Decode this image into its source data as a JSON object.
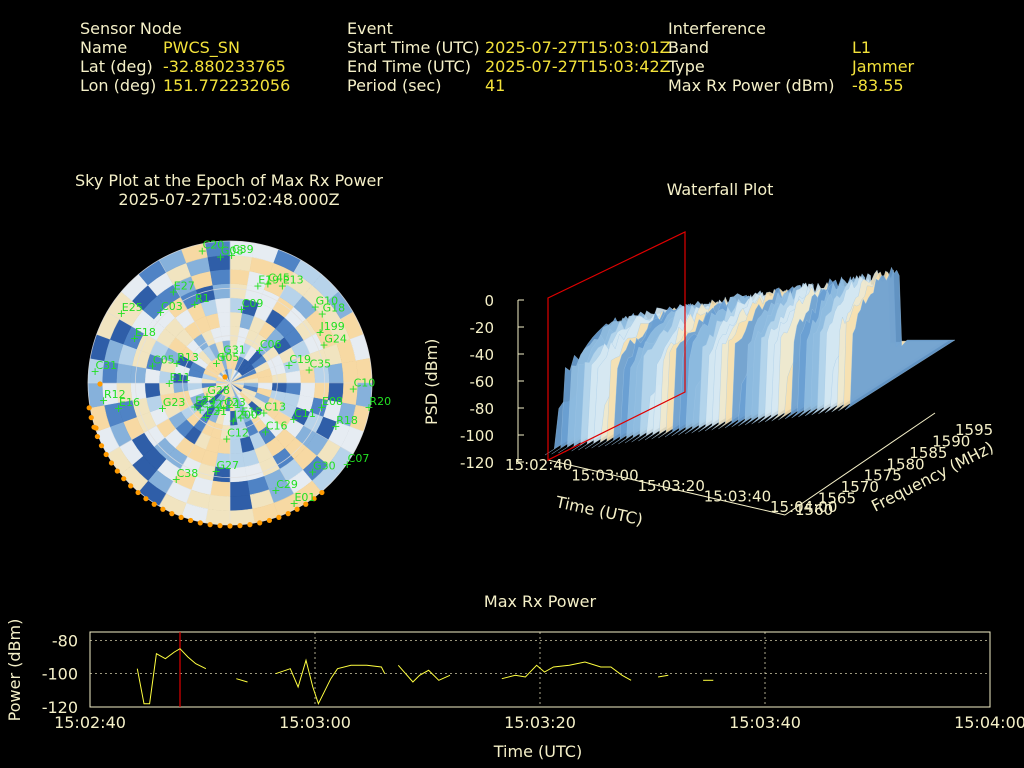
{
  "header": {
    "sensor": {
      "heading": "Sensor Node",
      "name_label": "Name",
      "name_value": "PWCS_SN",
      "lat_label": "Lat (deg)",
      "lat_value": "-32.880233765",
      "lon_label": "Lon (deg)",
      "lon_value": "151.772232056"
    },
    "event": {
      "heading": "Event",
      "start_label": "Start Time (UTC)",
      "start_value": "2025-07-27T15:03:01Z",
      "end_label": "End Time (UTC)",
      "end_value": "2025-07-27T15:03:42Z",
      "period_label": "Period (sec)",
      "period_value": "41"
    },
    "interference": {
      "heading": "Interference",
      "band_label": "Band",
      "band_value": "L1",
      "type_label": "Type",
      "type_value": "Jammer",
      "power_label": "Max Rx Power (dBm)",
      "power_value": "-83.55"
    }
  },
  "colors": {
    "label": "#f5f0c8",
    "value": "#f3e23a",
    "sat_label": "#22e022",
    "marker": "#ff9a00",
    "line": "#ffff40",
    "event": "#e00000"
  },
  "chart_data": [
    {
      "type": "scatter",
      "title": "Sky Plot at the Epoch of Max Rx Power",
      "subtitle": "2025-07-27T15:02:48.000Z",
      "satellites": [
        "C39",
        "G30",
        "C31",
        "G18",
        "G27",
        "E27",
        "E08",
        "G28",
        "C45",
        "C29",
        "E18",
        "C19",
        "C38",
        "C20",
        "C07",
        "R12",
        "C06",
        "J200",
        "C03",
        "C10",
        "C32",
        "C09",
        "C16",
        "C05",
        "J199",
        "C23",
        "R1",
        "R18",
        "G23",
        "E13",
        "E15",
        "E25",
        "C35",
        "E21",
        "G08",
        "C13",
        "E11",
        "G10",
        "C12",
        "G05",
        "R20",
        "E23",
        "E19",
        "E01",
        "R13",
        "G24",
        "C21",
        "G31",
        "C11",
        "E16"
      ],
      "markers": "orange-dots-below-horizon"
    },
    {
      "type": "heatmap",
      "title": "Waterfall Plot",
      "xlabel": "Time (UTC)",
      "ylabel": "Frequency (MHz)",
      "zlabel": "PSD (dBm)",
      "time_ticks": [
        "15:02:40",
        "15:03:00",
        "15:03:20",
        "15:03:40",
        "15:04:00"
      ],
      "freq_ticks": [
        "1560",
        "1565",
        "1570",
        "1575",
        "1580",
        "1585",
        "1590",
        "1595"
      ],
      "psd_ticks": [
        "0",
        "-20",
        "-40",
        "-60",
        "-80",
        "-100",
        "-120"
      ],
      "zlim": [
        -120,
        0
      ]
    },
    {
      "type": "line",
      "title": "Max Rx Power",
      "xlabel": "Time (UTC)",
      "ylabel": "Power (dBm)",
      "ylim": [
        -120,
        -75
      ],
      "xlim": [
        "15:02:40",
        "15:04:00"
      ],
      "x_ticks": [
        "15:02:40",
        "15:03:00",
        "15:03:20",
        "15:03:40",
        "15:04:00"
      ],
      "y_ticks": [
        "-80",
        "-100",
        "-120"
      ],
      "max_epoch_seconds": 8,
      "series": [
        {
          "segments": [
            [
              [
                4.2,
                -97
              ],
              [
                4.8,
                -118
              ],
              [
                5.3,
                -118
              ],
              [
                5.9,
                -88
              ],
              [
                6.7,
                -91
              ],
              [
                7.5,
                -87
              ],
              [
                8.0,
                -85
              ],
              [
                8.7,
                -90
              ],
              [
                9.4,
                -94
              ],
              [
                10.3,
                -97
              ]
            ],
            [
              [
                13,
                -103
              ],
              [
                14,
                -105
              ]
            ],
            [
              [
                16.5,
                -100
              ],
              [
                17.8,
                -97
              ],
              [
                18.5,
                -108
              ],
              [
                19.2,
                -92
              ],
              [
                19.8,
                -108
              ],
              [
                20.3,
                -118
              ],
              [
                21.4,
                -103
              ],
              [
                22.0,
                -97
              ],
              [
                23.2,
                -95
              ],
              [
                24.6,
                -95
              ],
              [
                25.9,
                -96
              ],
              [
                26.2,
                -100
              ]
            ],
            [
              [
                27.4,
                -95
              ],
              [
                28.7,
                -105
              ],
              [
                29.3,
                -101
              ],
              [
                30.1,
                -98
              ],
              [
                31.0,
                -104
              ],
              [
                32.0,
                -101
              ]
            ],
            [
              [
                36.6,
                -103
              ],
              [
                37.8,
                -101
              ],
              [
                38.7,
                -102
              ],
              [
                39.7,
                -95
              ],
              [
                40.4,
                -99
              ],
              [
                41.2,
                -96
              ],
              [
                42.6,
                -95
              ],
              [
                44.0,
                -93
              ],
              [
                45.4,
                -96
              ],
              [
                46.3,
                -96
              ],
              [
                47.3,
                -101
              ],
              [
                48.1,
                -104
              ]
            ],
            [
              [
                50.5,
                -102
              ],
              [
                51.4,
                -101
              ]
            ],
            [
              [
                54.5,
                -104
              ],
              [
                55.4,
                -104
              ]
            ]
          ]
        }
      ]
    }
  ]
}
